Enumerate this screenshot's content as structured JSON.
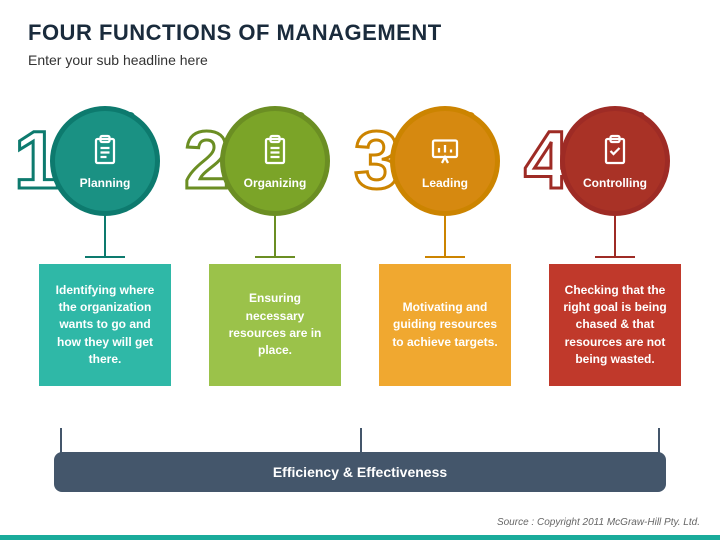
{
  "title": "FOUR FUNCTIONS OF MANAGEMENT",
  "subtitle": "Enter your sub headline here",
  "footer": "Efficiency & Effectiveness",
  "source": "Source : Copyright 2011 McGraw-Hill Pty. Ltd.",
  "background": "#ffffff",
  "accent_line": "#1aab9b",
  "footer_bg": "#44566b",
  "items": [
    {
      "n": "1",
      "label": "Planning",
      "desc": "Identifying where the organization wants to go and how they will get there.",
      "stroke": "#0d7a6e",
      "ring": "#1a9183",
      "card": "#2fb8a7",
      "icon": "clipboard"
    },
    {
      "n": "2",
      "label": "Organizing",
      "desc": "Ensuring necessary resources are in place.",
      "stroke": "#6b8e23",
      "ring": "#7ba428",
      "card": "#9bc24a",
      "icon": "list"
    },
    {
      "n": "3",
      "label": "Leading",
      "desc": "Motivating and guiding resources to achieve targets.",
      "stroke": "#cc8400",
      "ring": "#d68910",
      "card": "#f0a830",
      "icon": "presentation"
    },
    {
      "n": "4",
      "label": "Controlling",
      "desc": "Checking that the right goal is being chased & that resources are not being wasted.",
      "stroke": "#9e2b25",
      "ring": "#a93226",
      "card": "#c0392b",
      "icon": "check"
    }
  ]
}
